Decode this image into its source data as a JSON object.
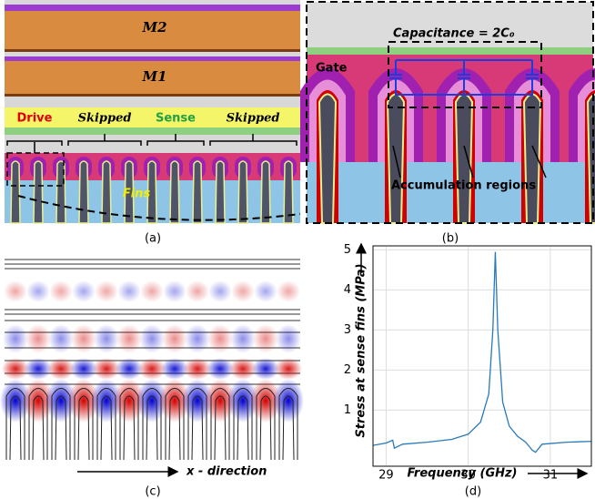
{
  "panel_a": {
    "label": "(a)",
    "metal_2": "M2",
    "metal_1": "M1",
    "drive": "Drive",
    "skipped_1": "Skipped",
    "sense": "Sense",
    "skipped_2": "Skipped",
    "fins": "Fins"
  },
  "panel_b": {
    "label": "(b)",
    "capacitance": "Capacitance = 2C₀",
    "gate": "Gate",
    "accumulation": "Accumulation regions"
  },
  "panel_c": {
    "label": "(c)",
    "direction": "x - direction"
  },
  "panel_d": {
    "label": "(d)"
  },
  "chart_data": {
    "type": "line",
    "xlabel": "Frequency (GHz)",
    "ylabel": "Stress at sense fins (MPa)",
    "xlim": [
      28.84,
      31.5
    ],
    "ylim": [
      -0.4,
      5.1
    ],
    "xticks": [
      29,
      30,
      31
    ],
    "yticks": [
      1,
      2,
      3,
      4,
      5
    ],
    "grid": true,
    "series": [
      {
        "color": "#2a7ab9",
        "x": [
          28.84,
          29.0,
          29.08,
          29.1,
          29.2,
          29.5,
          29.8,
          30.0,
          30.15,
          30.25,
          30.3,
          30.33,
          30.36,
          30.42,
          30.5,
          30.6,
          30.7,
          30.78,
          30.82,
          30.9,
          31.2,
          31.5
        ],
        "values": [
          0.12,
          0.18,
          0.25,
          0.05,
          0.15,
          0.2,
          0.27,
          0.4,
          0.7,
          1.4,
          3.0,
          4.95,
          3.0,
          1.2,
          0.6,
          0.35,
          0.2,
          0.0,
          -0.05,
          0.15,
          0.2,
          0.22
        ]
      }
    ]
  }
}
